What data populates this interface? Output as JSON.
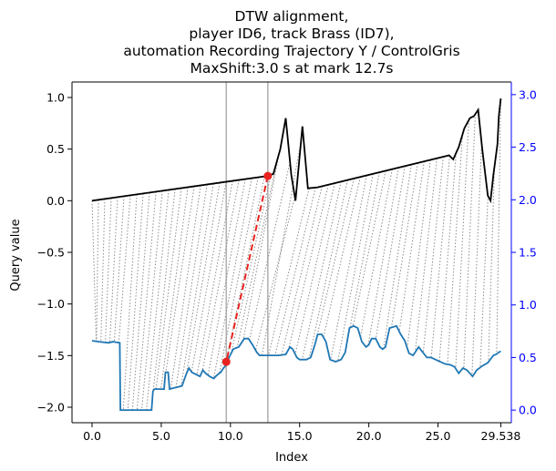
{
  "chart_data": {
    "type": "line",
    "title_lines": [
      "DTW alignment,",
      "player ID6, track Brass (ID7),",
      "automation Recording Trajectory Y / ControlGris",
      "MaxShift:3.0 s at mark 12.7s"
    ],
    "xlabel": "Index",
    "ylabel": "Query value",
    "xlim": [
      -1.45,
      30.3
    ],
    "ylim": [
      -2.15,
      1.15
    ],
    "ylim_right": [
      -0.12,
      3.12
    ],
    "xticks": [
      {
        "v": 0.0,
        "label": "0.0"
      },
      {
        "v": 5.0,
        "label": "5.0"
      },
      {
        "v": 10.0,
        "label": "10.0"
      },
      {
        "v": 15.0,
        "label": "15.0"
      },
      {
        "v": 20.0,
        "label": "20.0"
      },
      {
        "v": 25.0,
        "label": "25.0"
      },
      {
        "v": 29.538,
        "label": "29.538"
      }
    ],
    "yticks_left": [
      {
        "v": 1.0,
        "label": "1.0"
      },
      {
        "v": 0.5,
        "label": "0.5"
      },
      {
        "v": 0.0,
        "label": "0.0"
      },
      {
        "v": -0.5,
        "label": "−0.5"
      },
      {
        "v": -1.0,
        "label": "−1.0"
      },
      {
        "v": -1.5,
        "label": "−1.5"
      },
      {
        "v": -2.0,
        "label": "−2.0"
      }
    ],
    "yticks_right": [
      {
        "v": 0.0,
        "label": "0.0"
      },
      {
        "v": 0.5,
        "label": "0.5"
      },
      {
        "v": 1.0,
        "label": "1.0"
      },
      {
        "v": 1.5,
        "label": "1.5"
      },
      {
        "v": 2.0,
        "label": "2.0"
      },
      {
        "v": 2.5,
        "label": "2.5"
      },
      {
        "v": 3.0,
        "label": "3.0"
      }
    ],
    "vertical_markers": [
      9.7,
      12.7
    ],
    "query_series": {
      "color": "#000000",
      "points": [
        [
          0.0,
          0.0
        ],
        [
          12.7,
          0.24
        ],
        [
          13.1,
          0.26
        ],
        [
          13.6,
          0.5
        ],
        [
          14.0,
          0.8
        ],
        [
          14.4,
          0.25
        ],
        [
          14.7,
          0.0
        ],
        [
          15.2,
          0.72
        ],
        [
          15.6,
          0.12
        ],
        [
          16.3,
          0.13
        ],
        [
          25.8,
          0.44
        ],
        [
          26.1,
          0.4
        ],
        [
          26.5,
          0.52
        ],
        [
          26.9,
          0.7
        ],
        [
          27.3,
          0.8
        ],
        [
          27.6,
          0.82
        ],
        [
          27.9,
          0.88
        ],
        [
          28.2,
          0.5
        ],
        [
          28.6,
          0.05
        ],
        [
          28.8,
          0.0
        ],
        [
          29.0,
          0.25
        ],
        [
          29.3,
          0.55
        ],
        [
          29.4,
          0.82
        ],
        [
          29.538,
          0.99
        ]
      ]
    },
    "reference_series": {
      "color": "#1f77b4",
      "axis": "right",
      "points": [
        [
          0.0,
          0.66
        ],
        [
          0.5,
          0.65
        ],
        [
          1.2,
          0.64
        ],
        [
          1.5,
          0.65
        ],
        [
          2.0,
          0.64
        ],
        [
          2.05,
          0.0
        ],
        [
          4.3,
          0.0
        ],
        [
          4.4,
          0.18
        ],
        [
          4.5,
          0.2
        ],
        [
          5.2,
          0.2
        ],
        [
          5.3,
          0.36
        ],
        [
          5.5,
          0.36
        ],
        [
          5.6,
          0.2
        ],
        [
          6.2,
          0.22
        ],
        [
          6.5,
          0.23
        ],
        [
          6.8,
          0.34
        ],
        [
          7.0,
          0.4
        ],
        [
          7.2,
          0.36
        ],
        [
          7.5,
          0.34
        ],
        [
          7.8,
          0.32
        ],
        [
          8.0,
          0.38
        ],
        [
          8.2,
          0.35
        ],
        [
          8.5,
          0.32
        ],
        [
          8.8,
          0.3
        ],
        [
          9.0,
          0.33
        ],
        [
          9.3,
          0.36
        ],
        [
          9.5,
          0.4
        ],
        [
          9.7,
          0.43
        ],
        [
          9.9,
          0.5
        ],
        [
          10.2,
          0.58
        ],
        [
          10.6,
          0.6
        ],
        [
          11.0,
          0.68
        ],
        [
          11.3,
          0.68
        ],
        [
          11.6,
          0.62
        ],
        [
          11.9,
          0.55
        ],
        [
          12.1,
          0.52
        ],
        [
          12.5,
          0.52
        ],
        [
          13.0,
          0.52
        ],
        [
          13.5,
          0.52
        ],
        [
          14.0,
          0.53
        ],
        [
          14.3,
          0.6
        ],
        [
          14.5,
          0.58
        ],
        [
          14.8,
          0.5
        ],
        [
          15.0,
          0.48
        ],
        [
          15.5,
          0.48
        ],
        [
          15.8,
          0.5
        ],
        [
          16.1,
          0.62
        ],
        [
          16.3,
          0.72
        ],
        [
          16.6,
          0.72
        ],
        [
          16.9,
          0.65
        ],
        [
          17.2,
          0.48
        ],
        [
          17.6,
          0.46
        ],
        [
          18.0,
          0.48
        ],
        [
          18.3,
          0.55
        ],
        [
          18.6,
          0.78
        ],
        [
          18.9,
          0.8
        ],
        [
          19.2,
          0.78
        ],
        [
          19.5,
          0.65
        ],
        [
          19.8,
          0.6
        ],
        [
          20.0,
          0.62
        ],
        [
          20.2,
          0.68
        ],
        [
          20.5,
          0.68
        ],
        [
          20.8,
          0.6
        ],
        [
          21.0,
          0.58
        ],
        [
          21.2,
          0.6
        ],
        [
          21.5,
          0.78
        ],
        [
          22.0,
          0.8
        ],
        [
          22.3,
          0.72
        ],
        [
          22.6,
          0.66
        ],
        [
          22.9,
          0.54
        ],
        [
          23.2,
          0.52
        ],
        [
          23.6,
          0.6
        ],
        [
          23.9,
          0.55
        ],
        [
          24.2,
          0.5
        ],
        [
          24.5,
          0.5
        ],
        [
          25.0,
          0.47
        ],
        [
          25.5,
          0.44
        ],
        [
          25.9,
          0.43
        ],
        [
          26.2,
          0.41
        ],
        [
          26.5,
          0.35
        ],
        [
          26.8,
          0.4
        ],
        [
          27.1,
          0.38
        ],
        [
          27.5,
          0.32
        ],
        [
          27.8,
          0.38
        ],
        [
          28.2,
          0.42
        ],
        [
          28.6,
          0.45
        ],
        [
          29.0,
          0.52
        ],
        [
          29.2,
          0.53
        ],
        [
          29.4,
          0.55
        ],
        [
          29.538,
          0.56
        ]
      ]
    },
    "highlight_match": {
      "from": [
        12.7,
        0.24
      ],
      "to": [
        9.7,
        -1.56
      ],
      "color": "#e8231f"
    }
  }
}
